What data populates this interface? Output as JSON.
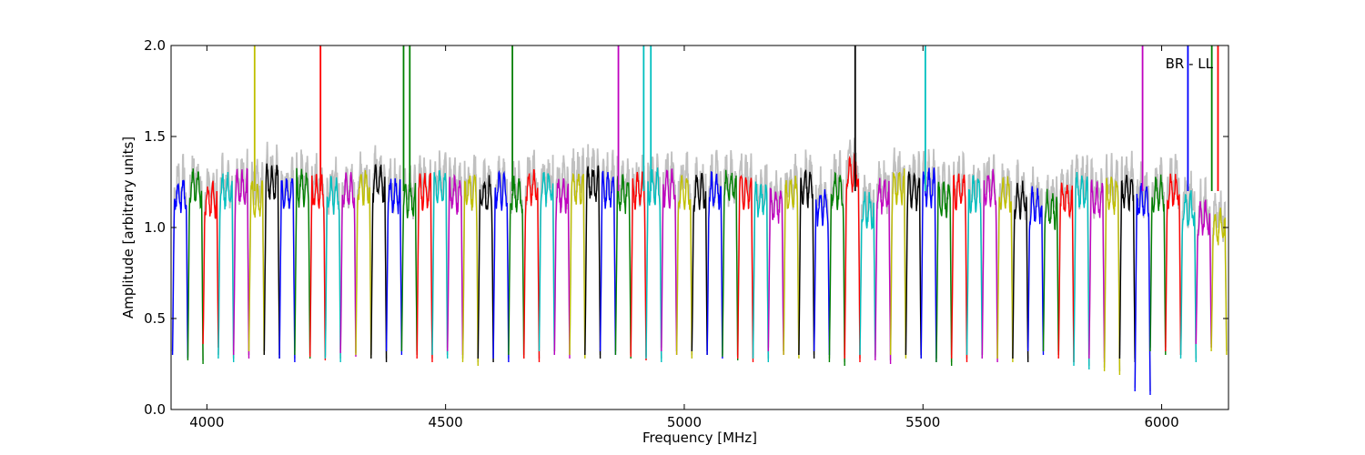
{
  "chart_data": {
    "type": "line",
    "title": "",
    "xlabel": "Frequency [MHz]",
    "ylabel": "Amplitude [arbitrary units]",
    "xlim": [
      3925,
      6140
    ],
    "ylim": [
      0.0,
      2.0
    ],
    "grid": false,
    "annotation": "BR - LL",
    "x_ticks": [
      4000,
      4500,
      5000,
      5500,
      6000
    ],
    "y_ticks": [
      0.0,
      0.5,
      1.0,
      1.5,
      2.0
    ],
    "y_tick_labels": [
      "0.0",
      "0.5",
      "1.0",
      "1.5",
      "2.0"
    ],
    "channel_width_mhz": 32,
    "series_colors": [
      "#0000ff",
      "#008000",
      "#ff0000",
      "#00bfbf",
      "#bf00bf",
      "#bfbf00",
      "#000000"
    ],
    "background_color": "#c0c0c0",
    "channel_starts": [
      3928,
      3960,
      3992,
      4024,
      4056,
      4088,
      4120,
      4152,
      4184,
      4216,
      4248,
      4280,
      4312,
      4344,
      4376,
      4408,
      4440,
      4472,
      4504,
      4536,
      4568,
      4600,
      4632,
      4664,
      4696,
      4728,
      4760,
      4792,
      4824,
      4856,
      4888,
      4920,
      4952,
      4984,
      5016,
      5048,
      5080,
      5112,
      5144,
      5176,
      5208,
      5240,
      5272,
      5304,
      5336,
      5368,
      5400,
      5432,
      5464,
      5496,
      5528,
      5560,
      5592,
      5624,
      5656,
      5688,
      5720,
      5752,
      5784,
      5816,
      5848,
      5880,
      5912,
      5944,
      5976,
      6008,
      6040,
      6072,
      6104
    ],
    "channel_levels": [
      1.18,
      1.22,
      1.15,
      1.2,
      1.22,
      1.15,
      1.25,
      1.18,
      1.22,
      1.2,
      1.18,
      1.2,
      1.22,
      1.24,
      1.18,
      1.15,
      1.2,
      1.22,
      1.18,
      1.2,
      1.18,
      1.2,
      1.18,
      1.22,
      1.22,
      1.18,
      1.22,
      1.24,
      1.2,
      1.18,
      1.2,
      1.22,
      1.22,
      1.2,
      1.2,
      1.2,
      1.22,
      1.2,
      1.15,
      1.12,
      1.18,
      1.22,
      1.12,
      1.2,
      1.3,
      1.1,
      1.18,
      1.22,
      1.2,
      1.22,
      1.15,
      1.2,
      1.18,
      1.22,
      1.18,
      1.15,
      1.12,
      1.1,
      1.15,
      1.2,
      1.15,
      1.18,
      1.2,
      1.15,
      1.18,
      1.2,
      1.1,
      1.05,
      1.0
    ],
    "channel_dips": [
      0.28,
      0.25,
      0.34,
      0.26,
      0.28,
      0.3,
      0.28,
      0.26,
      0.28,
      0.27,
      0.26,
      0.29,
      0.28,
      0.26,
      0.3,
      0.3,
      0.26,
      0.28,
      0.3,
      0.24,
      0.26,
      0.26,
      0.28,
      0.26,
      0.3,
      0.28,
      0.28,
      0.28,
      0.3,
      0.28,
      0.27,
      0.26,
      0.3,
      0.28,
      0.3,
      0.28,
      0.27,
      0.26,
      0.26,
      0.3,
      0.28,
      0.28,
      0.3,
      0.24,
      0.26,
      0.28,
      0.25,
      0.28,
      0.28,
      0.26,
      0.24,
      0.26,
      0.28,
      0.26,
      0.26,
      0.26,
      0.3,
      0.3,
      0.26,
      0.22,
      0.26,
      0.19,
      0.26,
      0.08,
      0.3,
      0.3,
      0.26,
      0.34,
      0.3
    ],
    "spikes": [
      {
        "x": 4100,
        "y": 2.0,
        "color": "#bfbf00"
      },
      {
        "x": 4238,
        "y": 2.0,
        "color": "#ff0000"
      },
      {
        "x": 4412,
        "y": 2.0,
        "color": "#008000"
      },
      {
        "x": 4425,
        "y": 2.0,
        "color": "#008000"
      },
      {
        "x": 4640,
        "y": 2.0,
        "color": "#008000"
      },
      {
        "x": 4862,
        "y": 2.0,
        "color": "#bf00bf"
      },
      {
        "x": 4915,
        "y": 2.0,
        "color": "#00bfbf"
      },
      {
        "x": 4930,
        "y": 2.0,
        "color": "#00bfbf"
      },
      {
        "x": 5358,
        "y": 2.0,
        "color": "#000000"
      },
      {
        "x": 5505,
        "y": 2.0,
        "color": "#00bfbf"
      },
      {
        "x": 5960,
        "y": 2.0,
        "color": "#bf00bf"
      },
      {
        "x": 6055,
        "y": 2.0,
        "color": "#0000ff"
      },
      {
        "x": 6105,
        "y": 2.0,
        "color": "#008000"
      },
      {
        "x": 6118,
        "y": 2.0,
        "color": "#ff0000"
      }
    ]
  }
}
